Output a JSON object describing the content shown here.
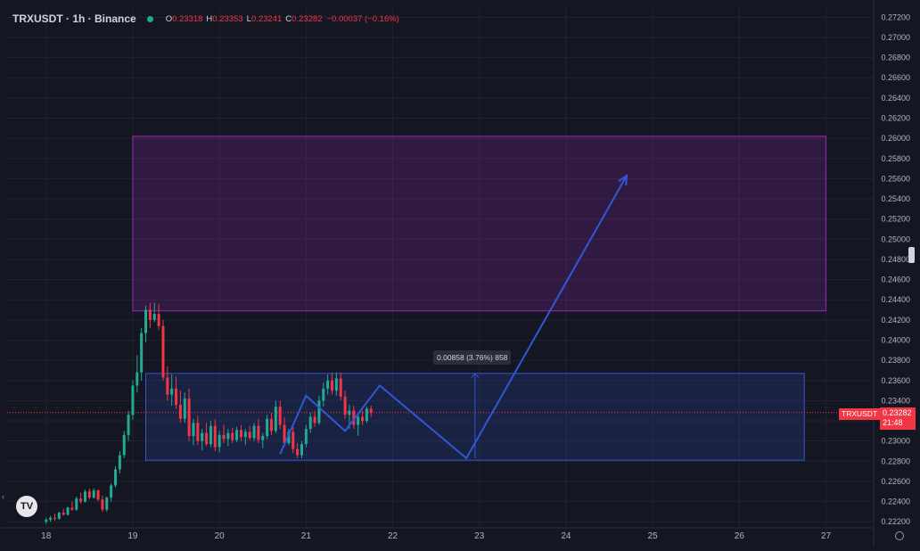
{
  "header": {
    "title": "TRXUSDT · 1h · Binance",
    "o_label": "O",
    "o_value": "0.23318",
    "h_label": "H",
    "h_value": "0.23353",
    "l_label": "L",
    "l_value": "0.23241",
    "c_label": "C",
    "c_value": "0.23282",
    "change": "−0.00037 (−0.16%)"
  },
  "price_scale": {
    "current_price": "0.23282",
    "countdown": "21:48",
    "symbol_tag": "TRXUSDT"
  },
  "measure_label": "0.00858 (3.76%) 858",
  "colors": {
    "background": "#141722",
    "up": "#22ab94",
    "down": "#f23645",
    "tool_blue": "#3157d6",
    "zone_purple": "#9c27b0"
  },
  "logo_text": "TV",
  "chart_data": {
    "type": "candlestick",
    "symbol": "TRXUSDT",
    "interval": "1h",
    "exchange": "Binance",
    "ylim": [
      0.2214,
      0.273
    ],
    "xlim": [
      17.55,
      27.55
    ],
    "y_ticks": [
      "0.27200",
      "0.27000",
      "0.26800",
      "0.26600",
      "0.26400",
      "0.26200",
      "0.26000",
      "0.25800",
      "0.25600",
      "0.25400",
      "0.25200",
      "0.25000",
      "0.24800",
      "0.24600",
      "0.24400",
      "0.24200",
      "0.24000",
      "0.23800",
      "0.23600",
      "0.23400",
      "0.23200",
      "0.23000",
      "0.22800",
      "0.22600",
      "0.22400",
      "0.22200"
    ],
    "x_ticks": [
      {
        "v": 18,
        "label": "18"
      },
      {
        "v": 19,
        "label": "19"
      },
      {
        "v": 20,
        "label": "20"
      },
      {
        "v": 21,
        "label": "21"
      },
      {
        "v": 22,
        "label": "22"
      },
      {
        "v": 23,
        "label": "23"
      },
      {
        "v": 24,
        "label": "24"
      },
      {
        "v": 25,
        "label": "25"
      },
      {
        "v": 26,
        "label": "26"
      },
      {
        "v": 27,
        "label": "27"
      }
    ],
    "candles": [
      [
        0.222,
        0.2224,
        0.2218,
        0.2222
      ],
      [
        0.2222,
        0.2226,
        0.222,
        0.2224
      ],
      [
        0.2224,
        0.2228,
        0.2221,
        0.2223
      ],
      [
        0.2223,
        0.223,
        0.2222,
        0.2229
      ],
      [
        0.2229,
        0.2233,
        0.2226,
        0.2227
      ],
      [
        0.2227,
        0.2235,
        0.2226,
        0.2234
      ],
      [
        0.2234,
        0.224,
        0.2231,
        0.2232
      ],
      [
        0.2232,
        0.2245,
        0.2231,
        0.2243
      ],
      [
        0.2243,
        0.2249,
        0.2238,
        0.224
      ],
      [
        0.224,
        0.2252,
        0.2239,
        0.225
      ],
      [
        0.225,
        0.2253,
        0.2242,
        0.2244
      ],
      [
        0.2244,
        0.2253,
        0.2243,
        0.2251
      ],
      [
        0.2251,
        0.2252,
        0.224,
        0.2242
      ],
      [
        0.2242,
        0.2246,
        0.223,
        0.2232
      ],
      [
        0.2232,
        0.2245,
        0.223,
        0.2244
      ],
      [
        0.2244,
        0.2258,
        0.224,
        0.2256
      ],
      [
        0.2256,
        0.2275,
        0.2254,
        0.2272
      ],
      [
        0.2272,
        0.229,
        0.2268,
        0.2286
      ],
      [
        0.2286,
        0.231,
        0.2283,
        0.2306
      ],
      [
        0.2306,
        0.233,
        0.23,
        0.2326
      ],
      [
        0.2326,
        0.236,
        0.2321,
        0.2355
      ],
      [
        0.2355,
        0.2385,
        0.2348,
        0.2368
      ],
      [
        0.2368,
        0.2412,
        0.236,
        0.2407
      ],
      [
        0.2407,
        0.2434,
        0.2398,
        0.243
      ],
      [
        0.243,
        0.2437,
        0.2412,
        0.242
      ],
      [
        0.242,
        0.2437,
        0.2418,
        0.2426
      ],
      [
        0.2426,
        0.2436,
        0.241,
        0.2414
      ],
      [
        0.2414,
        0.242,
        0.236,
        0.2363
      ],
      [
        0.2363,
        0.2374,
        0.234,
        0.2346
      ],
      [
        0.2346,
        0.2366,
        0.2335,
        0.2352
      ],
      [
        0.2352,
        0.2364,
        0.2332,
        0.2336
      ],
      [
        0.2336,
        0.235,
        0.2318,
        0.2322
      ],
      [
        0.2322,
        0.2348,
        0.2318,
        0.2342
      ],
      [
        0.2342,
        0.2352,
        0.23,
        0.2305
      ],
      [
        0.2305,
        0.2322,
        0.2296,
        0.2318
      ],
      [
        0.2318,
        0.2325,
        0.2296,
        0.23
      ],
      [
        0.23,
        0.2312,
        0.2291,
        0.2308
      ],
      [
        0.2308,
        0.2318,
        0.2295,
        0.2297
      ],
      [
        0.2297,
        0.232,
        0.2294,
        0.2315
      ],
      [
        0.2315,
        0.2322,
        0.229,
        0.2294
      ],
      [
        0.2294,
        0.231,
        0.2289,
        0.2306
      ],
      [
        0.2306,
        0.2316,
        0.2298,
        0.2302
      ],
      [
        0.2302,
        0.2312,
        0.2295,
        0.2308
      ],
      [
        0.2308,
        0.2313,
        0.2298,
        0.2301
      ],
      [
        0.2301,
        0.2314,
        0.2299,
        0.2311
      ],
      [
        0.2311,
        0.2316,
        0.23,
        0.2304
      ],
      [
        0.2304,
        0.2312,
        0.2296,
        0.2309
      ],
      [
        0.2309,
        0.2315,
        0.2301,
        0.2303
      ],
      [
        0.2303,
        0.2318,
        0.23,
        0.2315
      ],
      [
        0.2315,
        0.2322,
        0.2298,
        0.2301
      ],
      [
        0.2301,
        0.2308,
        0.2293,
        0.2305
      ],
      [
        0.2305,
        0.2326,
        0.2302,
        0.2322
      ],
      [
        0.2322,
        0.2328,
        0.2306,
        0.231
      ],
      [
        0.231,
        0.234,
        0.2308,
        0.2334
      ],
      [
        0.2334,
        0.234,
        0.2312,
        0.2316
      ],
      [
        0.2316,
        0.2324,
        0.2295,
        0.2298
      ],
      [
        0.2298,
        0.2312,
        0.2296,
        0.2309
      ],
      [
        0.2309,
        0.2314,
        0.2288,
        0.2292
      ],
      [
        0.2292,
        0.2298,
        0.2283,
        0.2286
      ],
      [
        0.2286,
        0.23,
        0.2283,
        0.2297
      ],
      [
        0.2297,
        0.2316,
        0.2294,
        0.2312
      ],
      [
        0.2312,
        0.2328,
        0.2308,
        0.2324
      ],
      [
        0.2324,
        0.233,
        0.2314,
        0.2318
      ],
      [
        0.2318,
        0.2345,
        0.2316,
        0.234
      ],
      [
        0.234,
        0.2358,
        0.2334,
        0.2352
      ],
      [
        0.2352,
        0.2366,
        0.2346,
        0.236
      ],
      [
        0.236,
        0.2368,
        0.2346,
        0.235
      ],
      [
        0.235,
        0.2368,
        0.2345,
        0.2362
      ],
      [
        0.2362,
        0.2368,
        0.234,
        0.2344
      ],
      [
        0.2344,
        0.235,
        0.2322,
        0.2326
      ],
      [
        0.2326,
        0.2336,
        0.2312,
        0.233
      ],
      [
        0.233,
        0.2335,
        0.2312,
        0.2316
      ],
      [
        0.2316,
        0.2328,
        0.2305,
        0.2324
      ],
      [
        0.2324,
        0.233,
        0.2316,
        0.232
      ],
      [
        0.232,
        0.2334,
        0.2318,
        0.2332
      ],
      [
        0.2332,
        0.2335,
        0.2324,
        0.2328
      ]
    ],
    "candle_x_start": 18.0,
    "candle_step": 0.05,
    "last_price": 0.23282,
    "zones": [
      {
        "name": "target-zone",
        "x0": 19.0,
        "x1": 27.0,
        "y0": 0.2429,
        "y1": 0.2602
      },
      {
        "name": "range-box",
        "x0": 19.15,
        "x1": 26.75,
        "y0": 0.2281,
        "y1": 0.2367
      }
    ],
    "projection_path": [
      [
        20.7,
        0.2287
      ],
      [
        21.0,
        0.2345
      ],
      [
        21.45,
        0.231
      ],
      [
        21.85,
        0.2355
      ],
      [
        22.85,
        0.2283
      ],
      [
        24.7,
        0.2563
      ]
    ],
    "measure": {
      "x": 22.95,
      "y0": 0.2283,
      "y1": 0.2367
    }
  }
}
